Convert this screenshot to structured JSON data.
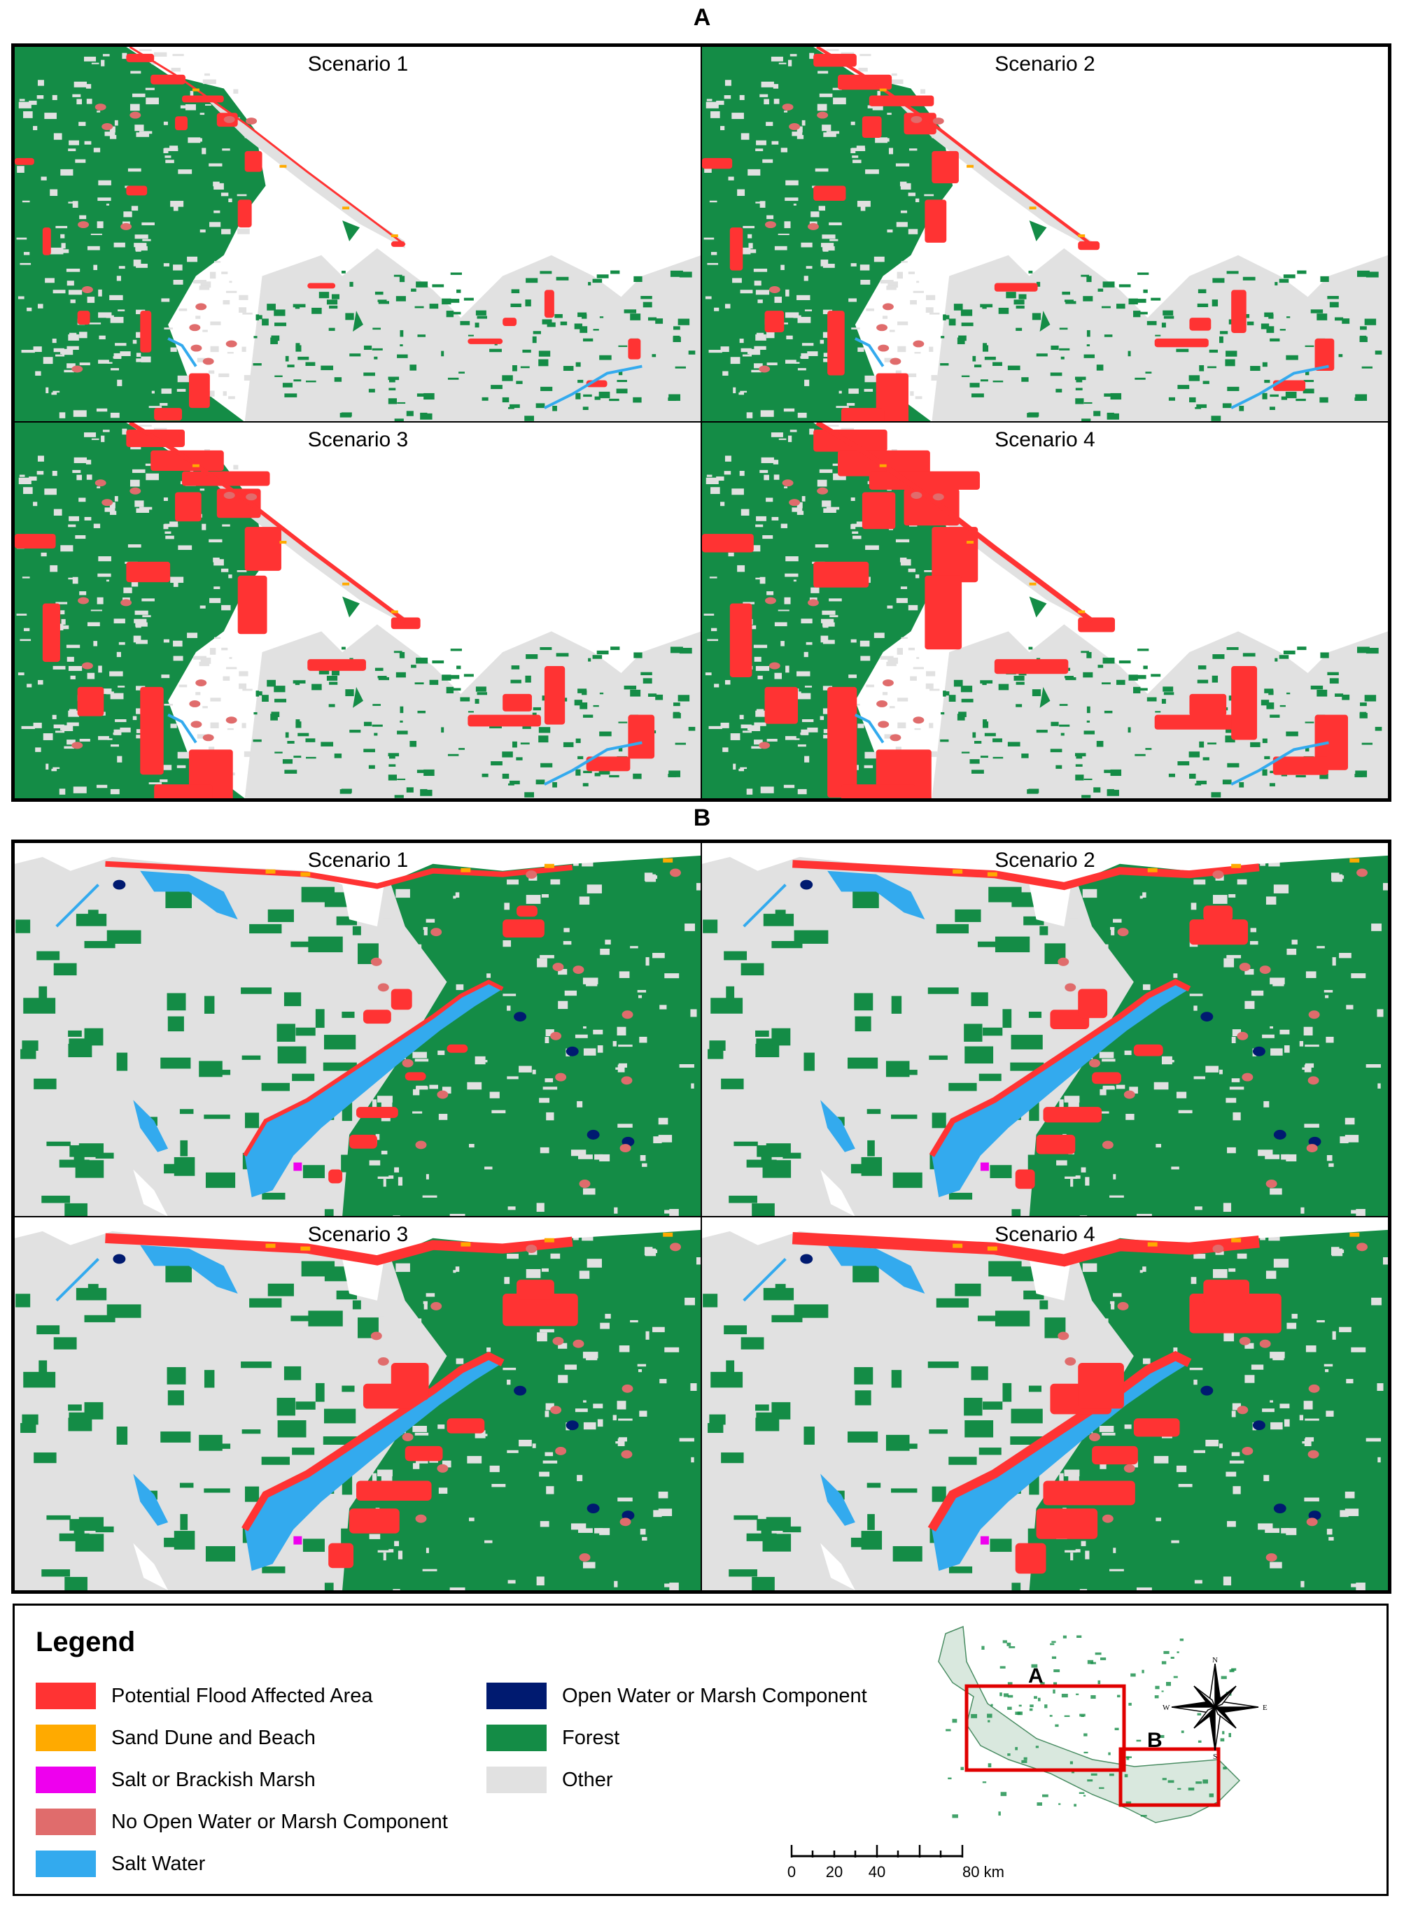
{
  "sections": [
    {
      "label": "A",
      "scenarios": [
        "Scenario 1",
        "Scenario 2",
        "Scenario 3",
        "Scenario 4"
      ]
    },
    {
      "label": "B",
      "scenarios": [
        "Scenario 1",
        "Scenario 2",
        "Scenario 3",
        "Scenario 4"
      ]
    }
  ],
  "colors": {
    "flood": "#ff3333",
    "dune": "#ffaa00",
    "salt_marsh": "#ee00ee",
    "no_open_water": "#e06c6c",
    "salt_water": "#33aaee",
    "open_water": "#001a70",
    "forest": "#148c46",
    "other": "#e1e1e1"
  },
  "legend": {
    "title": "Legend",
    "items": [
      {
        "label": "Potential Flood Affected Area",
        "color": "#ff3333"
      },
      {
        "label": "Sand Dune and Beach",
        "color": "#ffaa00"
      },
      {
        "label": "Salt or Brackish Marsh",
        "color": "#ee00ee"
      },
      {
        "label": "No Open Water or Marsh Component",
        "color": "#e06c6c"
      },
      {
        "label": "Salt Water",
        "color": "#33aaee"
      },
      {
        "label": "Open Water or Marsh Component",
        "color": "#001a70"
      },
      {
        "label": "Forest",
        "color": "#148c46"
      },
      {
        "label": "Other",
        "color": "#e1e1e1"
      }
    ]
  },
  "inset": {
    "box_labels": [
      "A",
      "B"
    ],
    "compass": {
      "n": "N",
      "s": "S",
      "e": "E",
      "w": "W"
    }
  },
  "scalebar": {
    "ticks": [
      "0",
      "20",
      "40",
      "80 km"
    ]
  }
}
